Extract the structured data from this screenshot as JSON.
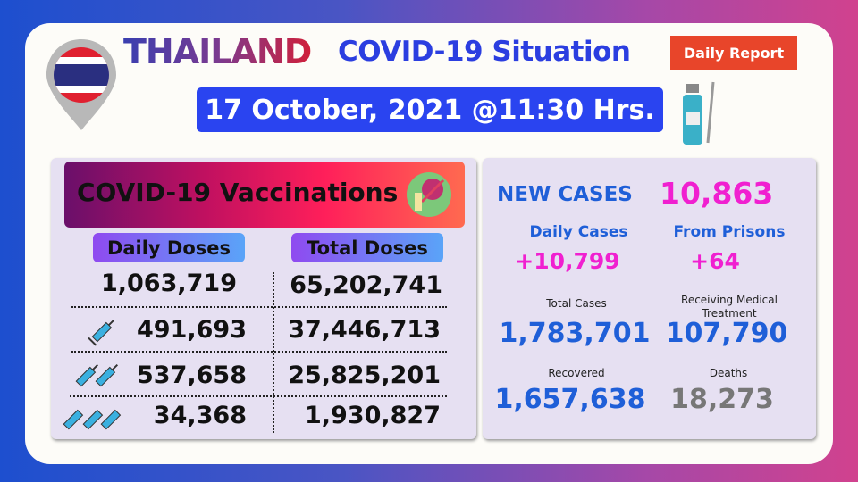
{
  "header": {
    "country": "THAILAND",
    "title": "COVID-19 Situation",
    "badge": "Daily Report",
    "date": "17 October, 2021 @11:30 Hrs."
  },
  "vaccinations": {
    "title": "COVID-19 Vaccinations",
    "daily_label": "Daily Doses",
    "total_label": "Total Doses",
    "rows": [
      {
        "dose_icon": "none",
        "daily": "1,063,719",
        "total": "65,202,741"
      },
      {
        "dose_icon": "syringe-x1",
        "daily": "491,693",
        "total": "37,446,713"
      },
      {
        "dose_icon": "syringe-x2",
        "daily": "537,658",
        "total": "25,825,201"
      },
      {
        "dose_icon": "syringe-x3",
        "daily": "34,368",
        "total": "1,930,827"
      }
    ]
  },
  "cases": {
    "new_label": "NEW CASES",
    "new_value": "10,863",
    "daily_label": "Daily Cases",
    "daily_value": "+10,799",
    "prison_label": "From Prisons",
    "prison_value": "+64",
    "total_label": "Total Cases",
    "total_value": "1,783,701",
    "treat_label": "Receiving Medical Treatment",
    "treat_value": "107,790",
    "recovered_label": "Recovered",
    "recovered_value": "1,657,638",
    "deaths_label": "Deaths",
    "deaths_value": "18,273"
  },
  "colors": {
    "blue": "#2b3ee0",
    "magenta": "#f020d0",
    "case_blue": "#1f5fd8",
    "grey": "#777777",
    "badge": "#e8452a"
  }
}
